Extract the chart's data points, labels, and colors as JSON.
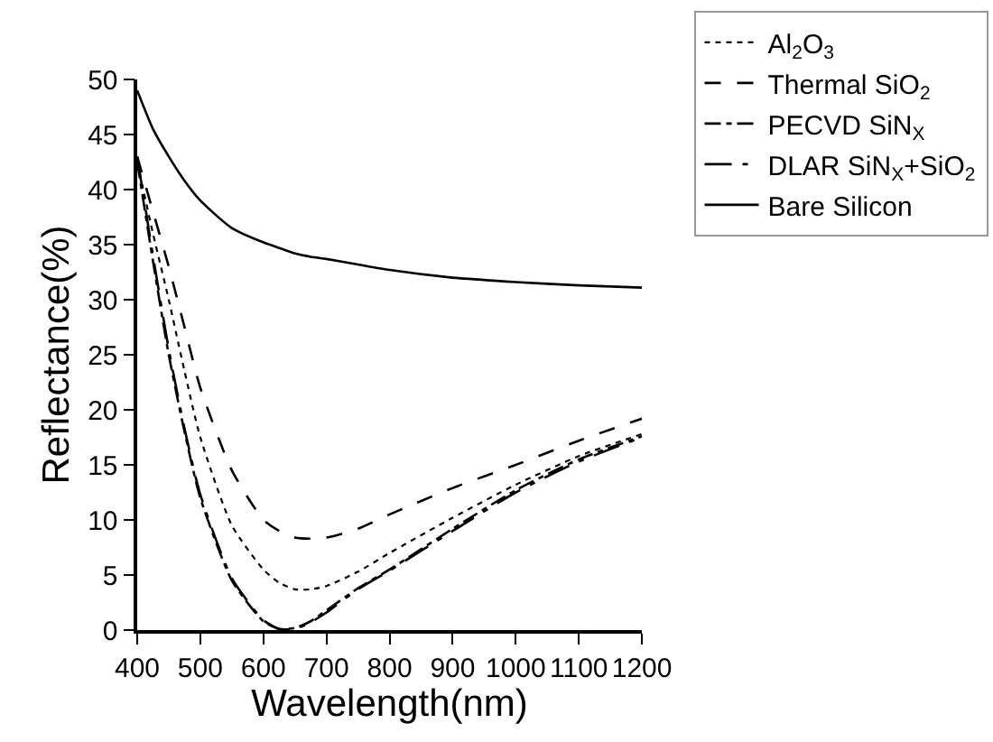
{
  "chart_data": {
    "type": "line",
    "xlabel": "Wavelength(nm)",
    "ylabel": "Reflectance(%)",
    "x": [
      400,
      425,
      450,
      475,
      500,
      550,
      600,
      625,
      650,
      675,
      700,
      750,
      800,
      900,
      1000,
      1100,
      1200
    ],
    "series": [
      {
        "name": "Al$_{2}$O$_{3}$",
        "color": "#000000",
        "line_style": "dotted",
        "values": [
          42.5,
          36,
          30,
          23.5,
          17.5,
          9.5,
          5.5,
          4.3,
          3.7,
          3.7,
          4.0,
          5.3,
          7.0,
          10.2,
          13.2,
          15.8,
          17.8
        ]
      },
      {
        "name": "Thermal SiO$_{2}$",
        "color": "#000000",
        "line_style": "dashed",
        "values": [
          43,
          38,
          33,
          27.5,
          22,
          14.5,
          10,
          9,
          8.4,
          8.3,
          8.4,
          9.2,
          10.5,
          12.9,
          15,
          17.2,
          19.2
        ]
      },
      {
        "name": "PECVD SiN$_{X}$",
        "color": "#000000",
        "line_style": "dashdot",
        "values": [
          42.5,
          33.5,
          25,
          18,
          12,
          4.5,
          0.8,
          0.1,
          0.2,
          0.8,
          1.8,
          3.8,
          5.5,
          9.2,
          12.7,
          15.5,
          17.6
        ]
      },
      {
        "name": "DLAR SiN$_{X}$+SiO$_{2}$",
        "color": "#000000",
        "line_style": "longdashdot",
        "values": [
          43,
          34,
          25.5,
          18.3,
          12.3,
          4.7,
          0.9,
          0.1,
          0.1,
          0.7,
          1.6,
          3.7,
          5.4,
          9.0,
          12.5,
          15.3,
          17.5
        ]
      },
      {
        "name": "Bare Silicon",
        "color": "#000000",
        "line_style": "solid",
        "values": [
          49,
          45.5,
          43,
          40.8,
          39,
          36.5,
          35.2,
          34.7,
          34.2,
          33.9,
          33.7,
          33.2,
          32.7,
          32,
          31.6,
          31.3,
          31.1
        ]
      }
    ],
    "xlim": [
      400,
      1200
    ],
    "xticks": [
      400,
      500,
      600,
      700,
      800,
      900,
      1000,
      1100,
      1200
    ],
    "ylim": [
      0,
      50
    ],
    "yticks": [
      0,
      5,
      10,
      15,
      20,
      25,
      30,
      35,
      40,
      45,
      50
    ],
    "legend": "top right",
    "marker": "none"
  }
}
